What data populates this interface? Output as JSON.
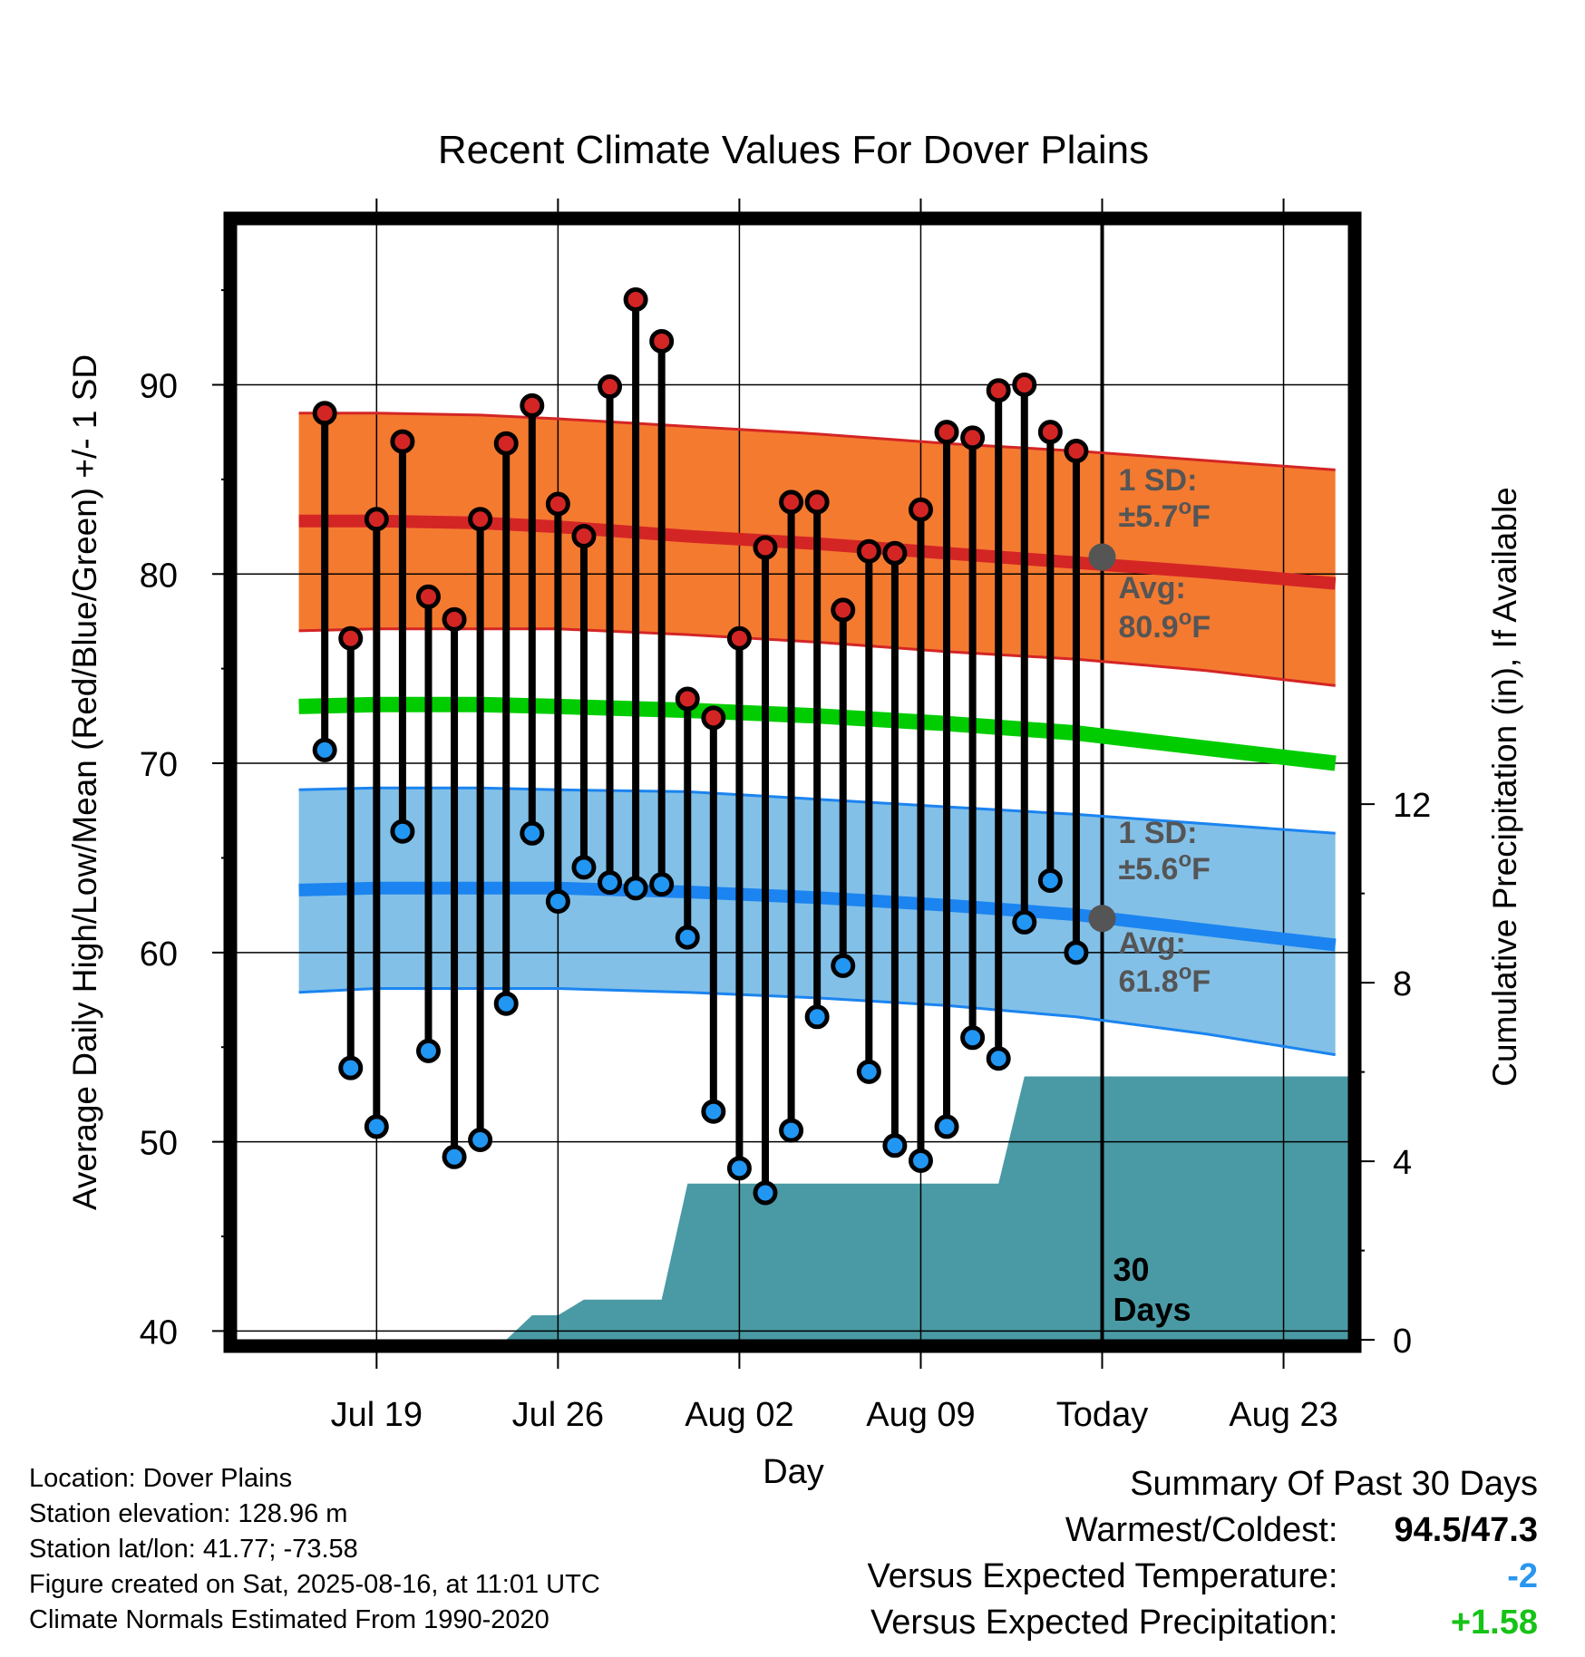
{
  "chart_data": {
    "type": "line",
    "title": "Recent Climate Values For Dover Plains",
    "xlabel": "Day",
    "ylabel": "Average Daily High/Low/Mean (Red/Blue/Green) +/- 1 SD",
    "y2label": "Cumulative Precipitation (in), If Available",
    "ylim": [
      39.3,
      98.5
    ],
    "y2lim": [
      -0.1,
      25
    ],
    "xlim": [
      -33.4,
      9.5
    ],
    "y_ticks": [
      "40",
      "50",
      "60",
      "70",
      "80",
      "90"
    ],
    "y_tick_values": [
      40,
      50,
      60,
      70,
      80,
      90
    ],
    "y2_ticks": [
      "0",
      "4",
      "8",
      "12"
    ],
    "y2_tick_values": [
      0,
      4,
      8,
      12
    ],
    "x_tick_labels": [
      "Jul 19",
      "Jul 26",
      "Aug 02",
      "Aug 09",
      "Today",
      "Aug 23"
    ],
    "x_tick_values": [
      -28,
      -21,
      -14,
      -7,
      0,
      7
    ],
    "grid": true,
    "today_marker_label": "30\nDays",
    "daily": {
      "day": [
        -30,
        -29,
        -28,
        -27,
        -26,
        -25,
        -24,
        -23,
        -22,
        -21,
        -20,
        -19,
        -18,
        -17,
        -16,
        -15,
        -14,
        -13,
        -12,
        -11,
        -10,
        -9,
        -8,
        -7,
        -6,
        -5,
        -4,
        -3,
        -2,
        -1
      ],
      "high": [
        88.5,
        76.6,
        82.9,
        87.0,
        78.8,
        77.6,
        82.9,
        86.9,
        88.9,
        83.7,
        82.0,
        89.9,
        94.5,
        92.3,
        73.4,
        72.4,
        76.6,
        81.4,
        83.8,
        83.8,
        78.1,
        81.2,
        81.1,
        83.4,
        87.5,
        87.2,
        89.7,
        90.0,
        87.5,
        86.5
      ],
      "low": [
        70.7,
        53.9,
        50.8,
        66.4,
        54.8,
        49.2,
        50.1,
        57.3,
        66.3,
        62.7,
        64.5,
        63.7,
        63.4,
        63.6,
        60.8,
        51.6,
        48.6,
        47.3,
        50.6,
        56.6,
        59.3,
        53.7,
        49.8,
        49.0,
        50.8,
        55.5,
        54.4,
        61.6,
        63.8,
        60.0
      ]
    },
    "normals": {
      "day": [
        -31,
        -28,
        -24,
        -21,
        -16,
        -11,
        -6,
        -1,
        4,
        9
      ],
      "high_avg": [
        82.8,
        82.8,
        82.7,
        82.5,
        82.0,
        81.6,
        81.1,
        80.6,
        80.1,
        79.5
      ],
      "high_sd_upper": [
        88.5,
        88.5,
        88.4,
        88.2,
        87.8,
        87.4,
        86.9,
        86.5,
        86.0,
        85.5
      ],
      "high_sd_lower": [
        77.0,
        77.1,
        77.1,
        77.1,
        76.8,
        76.4,
        75.9,
        75.5,
        74.9,
        74.1
      ],
      "mean_avg": [
        73.0,
        73.1,
        73.1,
        73.0,
        72.8,
        72.5,
        72.1,
        71.6,
        70.8,
        70.0
      ],
      "low_avg": [
        63.3,
        63.4,
        63.4,
        63.4,
        63.2,
        62.9,
        62.5,
        62.0,
        61.2,
        60.4
      ],
      "low_sd_upper": [
        68.6,
        68.7,
        68.7,
        68.6,
        68.5,
        68.1,
        67.7,
        67.3,
        66.8,
        66.3
      ],
      "low_sd_lower": [
        57.9,
        58.1,
        58.1,
        58.1,
        57.9,
        57.6,
        57.2,
        56.6,
        55.7,
        54.6
      ]
    },
    "precip_cumulative": {
      "day": [
        -33.4,
        -23.0,
        -22.0,
        -21.0,
        -20.0,
        -19.0,
        -18.0,
        -17.0,
        -16.0,
        -15.0,
        -14.0,
        -13.0,
        -12.0,
        -11.0,
        -10.0,
        -9.0,
        -8.0,
        -7.0,
        -6.0,
        -5.0,
        -4.0,
        -3.0,
        -2.0,
        -1.0,
        0.0,
        9.5
      ],
      "value": [
        0,
        0,
        0.55,
        0.55,
        0.9,
        0.9,
        0.9,
        0.9,
        3.5,
        3.5,
        3.5,
        3.5,
        3.5,
        3.5,
        3.5,
        3.5,
        3.5,
        3.5,
        3.5,
        3.5,
        3.5,
        5.9,
        5.9,
        5.9,
        5.9,
        5.9
      ]
    },
    "annotations": {
      "high_sd": "1 SD:",
      "high_sd_value": "±5.7°F",
      "high_avg_label": "Avg:",
      "high_avg_value": "80.9°F",
      "high_avg_point": 80.9,
      "low_sd": "1 SD:",
      "low_sd_value": "±5.6°F",
      "low_avg_label": "Avg:",
      "low_avg_value": "61.8°F",
      "low_avg_point": 61.8
    },
    "colors": {
      "high_band": "#f47a30",
      "high_line": "#d42525",
      "low_band": "#82c0e8",
      "low_line": "#1b84f0",
      "mean_line": "#00cc00",
      "precip": "#4a9aa5",
      "high_dot": "#d42525",
      "low_dot": "#2196f3",
      "avg_marker": "#555555"
    }
  },
  "info": {
    "location": "Location: Dover Plains",
    "elevation": "Station elevation: 128.96 m",
    "latlon": "Station lat/lon: 41.77; -73.58",
    "created": "Figure created on Sat, 2025-08-16, at 11:01 UTC",
    "normals": "Climate Normals Estimated From 1990-2020"
  },
  "summary": {
    "title": "Summary Of Past 30 Days",
    "warm_cold_label": "Warmest/Coldest:",
    "warm_cold_value": "94.5/47.3",
    "temp_label": "Versus Expected Temperature:",
    "temp_value": "-2",
    "precip_label": "Versus Expected Precipitation:",
    "precip_value": "+1.58"
  }
}
